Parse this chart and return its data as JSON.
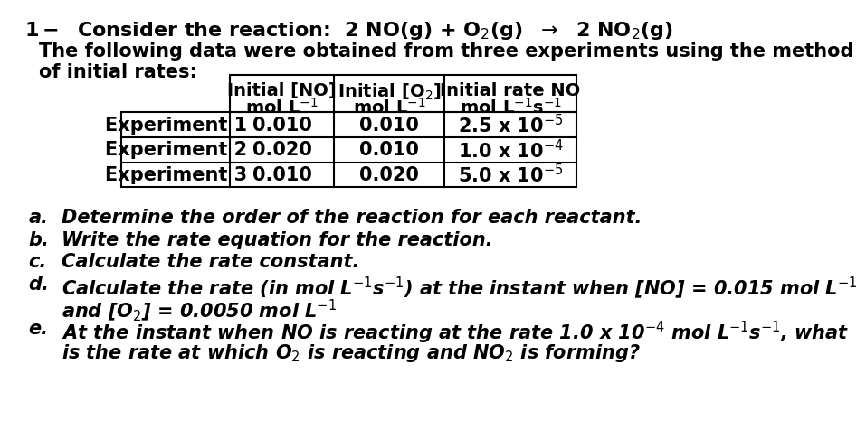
{
  "background_color": "#ffffff",
  "font_size_title": 16,
  "font_size_body": 15,
  "font_size_table_header": 14,
  "font_size_table_data": 15,
  "text_color": "#000000",
  "title_number": "1-",
  "title_rest": "  Consider the reaction:  2 NO(g) + O",
  "line2": "The following data were obtained from three experiments using the method",
  "line3": "of initial rates:",
  "col_headers_line1": [
    "Initial [NO]",
    "Initial [O₂]",
    "Initial rate NO"
  ],
  "col_headers_line2": [
    "mol L⁻¹",
    "mol L⁻¹",
    "mol L⁻¹s⁻¹"
  ],
  "row_labels": [
    "Experiment 1",
    "Experiment 2",
    "Experiment 3"
  ],
  "table_data": [
    [
      "0.010",
      "0.010",
      "2.5 x 10⁻⁵"
    ],
    [
      "0.020",
      "0.010",
      "1.0 x 10⁻⁴"
    ],
    [
      "0.010",
      "0.020",
      "5.0 x 10⁻⁵"
    ]
  ],
  "q_labels": [
    "a.",
    "b.",
    "c.",
    "d.",
    "",
    "e.",
    ""
  ],
  "q_texts": [
    "Determine the order of the reaction for each reactant.",
    "Write the rate equation for the reaction.",
    "Calculate the rate constant.",
    "Calculate the rate (in mol L⁻¹s⁻¹) at the instant when [NO] = 0.015 mol L⁻¹",
    "and [O₂] = 0.0050 mol L⁻¹",
    "At the instant when NO is reacting at the rate 1.0 x 10⁻⁴ mol L⁻¹s⁻¹, what",
    "is the rate at which O₂ is reacting and NO₂ is forming?"
  ]
}
